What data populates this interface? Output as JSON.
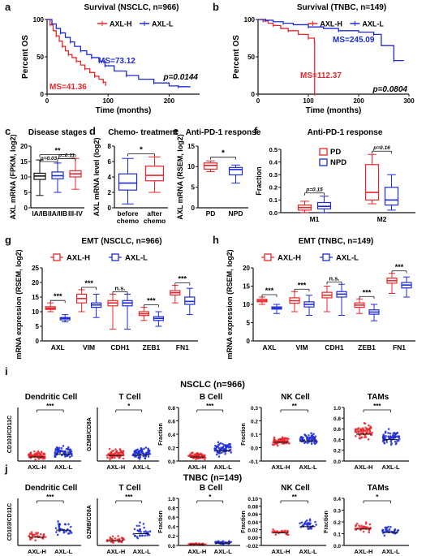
{
  "panel_letters": [
    "a",
    "b",
    "c",
    "d",
    "e",
    "f",
    "g",
    "h",
    "i",
    "j"
  ],
  "colors": {
    "high": "#e8262a",
    "low": "#1d2bd6",
    "axis": "#111111"
  },
  "section_titles": {
    "i": "NSCLC (n=966)",
    "j": "TNBC (n=149)"
  },
  "chart_data": [
    {
      "panel": "a",
      "type": "line",
      "title": "Survival (NSCLC, n=966)",
      "xlabel": "Time (months)",
      "ylabel": "Percent OS",
      "xlim": [
        0,
        250
      ],
      "ylim": [
        0,
        100
      ],
      "xticks": [
        0,
        100,
        200
      ],
      "yticks": [
        0,
        50,
        100
      ],
      "legend": [
        "AXL-H",
        "AXL-L"
      ],
      "annotations": {
        "ms_high": "MS=41.36",
        "ms_low": "MS=73.12",
        "p": "p=0.0144"
      },
      "series": [
        {
          "name": "AXL-H",
          "x": [
            0,
            5,
            10,
            15,
            20,
            25,
            30,
            35,
            41,
            48,
            55,
            62,
            70,
            78,
            85,
            92,
            96
          ],
          "y": [
            100,
            93,
            85,
            78,
            71,
            64,
            58,
            53,
            49,
            44,
            39,
            34,
            29,
            24,
            20,
            16,
            11
          ]
        },
        {
          "name": "AXL-L",
          "x": [
            0,
            8,
            15,
            22,
            30,
            38,
            45,
            55,
            65,
            73,
            85,
            95,
            110,
            130,
            150,
            175,
            200,
            215,
            235
          ],
          "y": [
            100,
            94,
            88,
            82,
            76,
            70,
            64,
            58,
            53,
            49,
            44,
            38,
            31,
            25,
            20,
            15,
            11,
            10,
            10
          ]
        }
      ]
    },
    {
      "panel": "b",
      "type": "line",
      "title": "Survival (TNBC, n=149)",
      "xlabel": "Time (months)",
      "ylabel": "Percent OS",
      "xlim": [
        0,
        300
      ],
      "ylim": [
        0,
        100
      ],
      "xticks": [
        0,
        100,
        200,
        300
      ],
      "yticks": [
        0,
        50,
        100
      ],
      "legend": [
        "AXL-H",
        "AXL-L"
      ],
      "annotations": {
        "ms_high": "MS=112.37",
        "ms_low": "MS=245.09",
        "p": "p=0.0804"
      },
      "series": [
        {
          "name": "AXL-H",
          "x": [
            0,
            10,
            20,
            30,
            45,
            60,
            80,
            100,
            112,
            112.5
          ],
          "y": [
            100,
            98,
            95,
            92,
            88,
            85,
            80,
            75,
            70,
            0
          ]
        },
        {
          "name": "AXL-L",
          "x": [
            0,
            15,
            30,
            50,
            70,
            100,
            130,
            160,
            200,
            230,
            245,
            270,
            290
          ],
          "y": [
            100,
            99,
            97,
            95,
            93,
            90,
            88,
            85,
            83,
            80,
            65,
            45,
            45
          ]
        }
      ]
    },
    {
      "panel": "c",
      "type": "box",
      "title": "Disease stages",
      "ylabel": "AXL mRNA (FPKM, log2)",
      "ylim": [
        0,
        20
      ],
      "yticks": [
        0,
        5,
        10,
        15,
        20
      ],
      "categories": [
        "IA/IB",
        "IIA/IIB",
        "III-IV"
      ],
      "box_colors": [
        "#111111",
        "#1d2bd6",
        "#e8262a"
      ],
      "boxes": [
        {
          "min": 4,
          "q1": 9.2,
          "median": 10.3,
          "q3": 11.2,
          "max": 15.5
        },
        {
          "min": 5,
          "q1": 9.4,
          "median": 10.4,
          "q3": 11.6,
          "max": 14.5
        },
        {
          "min": 6,
          "q1": 10.0,
          "median": 11.0,
          "q3": 12.0,
          "max": 16.0
        }
      ],
      "annotations": {
        "p1": "p=0.03",
        "p2": "p=0.11",
        "sig": "**"
      }
    },
    {
      "panel": "d",
      "type": "box",
      "title": "Chemo- treatment",
      "ylabel": "AXL mRNA level (log2)",
      "ylim": [
        0,
        8
      ],
      "yticks": [
        0,
        2,
        4,
        6,
        8
      ],
      "categories": [
        "before chemo",
        "after chemo"
      ],
      "box_colors": [
        "#1d2bd6",
        "#e8262a"
      ],
      "boxes": [
        {
          "min": 0.5,
          "q1": 2.3,
          "median": 3.2,
          "q3": 4.4,
          "max": 6.4
        },
        {
          "min": 2.0,
          "q1": 3.5,
          "median": 4.2,
          "q3": 5.4,
          "max": 6.6
        }
      ],
      "annotations": {
        "sig": "*"
      }
    },
    {
      "panel": "e",
      "type": "box",
      "title": "Anti-PD-1 response",
      "ylabel": "AXL mRNA (RSEM, log2)",
      "ylim": [
        0,
        15
      ],
      "yticks": [
        0,
        5,
        10,
        15
      ],
      "categories": [
        "PD",
        "NPD"
      ],
      "box_colors": [
        "#e8262a",
        "#1d2bd6"
      ],
      "boxes": [
        {
          "min": 8.8,
          "q1": 9.4,
          "median": 10.3,
          "q3": 10.9,
          "max": 11.4
        },
        {
          "min": 6.0,
          "q1": 8.0,
          "median": 9.3,
          "q3": 9.8,
          "max": 10.4
        }
      ],
      "annotations": {
        "sig": "*"
      }
    },
    {
      "panel": "f",
      "type": "box",
      "title": "Anti-PD-1 response",
      "ylabel": "Fraction",
      "ylim": [
        0,
        0.5
      ],
      "yticks": [
        0.0,
        0.1,
        0.2,
        0.3,
        0.4,
        0.5
      ],
      "categories": [
        "M1",
        "M2"
      ],
      "legend": [
        "PD",
        "NPD"
      ],
      "groups": [
        {
          "name": "PD",
          "color": "#e8262a",
          "boxes": [
            {
              "min": 0.0,
              "q1": 0.02,
              "median": 0.04,
              "q3": 0.06,
              "max": 0.09
            },
            {
              "min": 0.07,
              "q1": 0.1,
              "median": 0.16,
              "q3": 0.38,
              "max": 0.46
            }
          ]
        },
        {
          "name": "NPD",
          "color": "#1d2bd6",
          "boxes": [
            {
              "min": 0.0,
              "q1": 0.03,
              "median": 0.05,
              "q3": 0.08,
              "max": 0.13
            },
            {
              "min": 0.02,
              "q1": 0.06,
              "median": 0.1,
              "q3": 0.2,
              "max": 0.3
            }
          ]
        }
      ],
      "annotations": {
        "p1": "p=0.15",
        "p2": "p=0.16"
      }
    },
    {
      "panel": "g",
      "type": "box",
      "title": "EMT (NSCLC, n=966)",
      "ylabel": "mRNA expression (RSEM, log2)",
      "ylim": [
        0,
        25
      ],
      "yticks": [
        0,
        5,
        10,
        15,
        20,
        25
      ],
      "categories": [
        "AXL",
        "VIM",
        "CDH1",
        "ZEB1",
        "FN1"
      ],
      "legend": [
        "AXL-H",
        "AXL-L"
      ],
      "sig": [
        "***",
        "***",
        "n.s.",
        "***",
        "***"
      ],
      "groups": [
        {
          "name": "AXL-H",
          "color": "#e8262a",
          "boxes": [
            {
              "min": 10,
              "q1": 10.8,
              "median": 11.2,
              "q3": 11.7,
              "max": 13
            },
            {
              "min": 10,
              "q1": 13,
              "median": 14.5,
              "q3": 16,
              "max": 17.5
            },
            {
              "min": 4,
              "q1": 12,
              "median": 13,
              "q3": 13.8,
              "max": 16
            },
            {
              "min": 7,
              "q1": 8.7,
              "median": 9.3,
              "q3": 10,
              "max": 11.5
            },
            {
              "min": 13,
              "q1": 15.7,
              "median": 16.5,
              "q3": 17.2,
              "max": 19
            }
          ]
        },
        {
          "name": "AXL-L",
          "color": "#1d2bd6",
          "boxes": [
            {
              "min": 6.5,
              "q1": 7.2,
              "median": 7.7,
              "q3": 8,
              "max": 9
            },
            {
              "min": 8,
              "q1": 11.5,
              "median": 12.3,
              "q3": 13,
              "max": 16
            },
            {
              "min": 4,
              "q1": 12,
              "median": 13,
              "q3": 13.8,
              "max": 16
            },
            {
              "min": 5,
              "q1": 7,
              "median": 7.7,
              "q3": 8.3,
              "max": 10
            },
            {
              "min": 9,
              "q1": 12.5,
              "median": 13.5,
              "q3": 15,
              "max": 18
            }
          ]
        }
      ]
    },
    {
      "panel": "h",
      "type": "box",
      "title": "EMT (TNBC, n=149)",
      "ylabel": "mRNA expression (RSEM, log2)",
      "ylim": [
        0,
        20
      ],
      "yticks": [
        0,
        5,
        10,
        15,
        20
      ],
      "categories": [
        "AXL",
        "VIM",
        "CDH1",
        "ZEB1",
        "FN1"
      ],
      "legend": [
        "AXL-H",
        "AXL-L"
      ],
      "sig": [
        "***",
        "***",
        "n.s.",
        "***",
        "***"
      ],
      "groups": [
        {
          "name": "AXL-H",
          "color": "#e8262a",
          "boxes": [
            {
              "min": 10,
              "q1": 10.7,
              "median": 11,
              "q3": 11.4,
              "max": 12
            },
            {
              "min": 8,
              "q1": 10.3,
              "median": 11,
              "q3": 11.8,
              "max": 13.5
            },
            {
              "min": 8,
              "q1": 11.8,
              "median": 12.5,
              "q3": 13.3,
              "max": 15
            },
            {
              "min": 7.5,
              "q1": 9.2,
              "median": 9.8,
              "q3": 10.4,
              "max": 11.5
            },
            {
              "min": 13,
              "q1": 15.8,
              "median": 16.5,
              "q3": 17.2,
              "max": 18.5
            }
          ]
        },
        {
          "name": "AXL-L",
          "color": "#1d2bd6",
          "boxes": [
            {
              "min": 7.5,
              "q1": 8.7,
              "median": 9,
              "q3": 9.3,
              "max": 10
            },
            {
              "min": 7,
              "q1": 9.3,
              "median": 10,
              "q3": 10.7,
              "max": 12.5
            },
            {
              "min": 7,
              "q1": 12,
              "median": 12.8,
              "q3": 13.5,
              "max": 15.5
            },
            {
              "min": 5.5,
              "q1": 7.3,
              "median": 7.9,
              "q3": 8.5,
              "max": 10
            },
            {
              "min": 12,
              "q1": 14.5,
              "median": 15.3,
              "q3": 16,
              "max": 17.5
            }
          ]
        }
      ]
    },
    {
      "panel": "i1",
      "type": "scatter",
      "title": "Dendritic Cell",
      "ylabel": "CD103/CD11C",
      "categories": [
        "AXL-H",
        "AXL-L"
      ],
      "sig": "***",
      "ylim": [
        0,
        8
      ],
      "groups": [
        {
          "name": "AXL-H",
          "center": 0.6,
          "spread": 0.9,
          "max": 4
        },
        {
          "name": "AXL-L",
          "center": 1.0,
          "spread": 1.4,
          "max": 7
        }
      ]
    },
    {
      "panel": "i2",
      "type": "scatter",
      "title": "T Cell",
      "ylabel": "GZMB/CD8A",
      "categories": [
        "AXL-H",
        "AXL-L"
      ],
      "sig": "*",
      "ylim": [
        0,
        8
      ],
      "groups": [
        {
          "name": "AXL-H",
          "center": 0.8,
          "spread": 1.0,
          "max": 5
        },
        {
          "name": "AXL-L",
          "center": 0.9,
          "spread": 1.2,
          "max": 6
        }
      ]
    },
    {
      "panel": "i3",
      "type": "scatter",
      "title": "B Cell",
      "ylabel": "Fraction",
      "categories": [
        "AXL-H",
        "AXL-L"
      ],
      "sig": "***",
      "ylim": [
        0,
        0.8
      ],
      "yticks": [
        0.0,
        0.2,
        0.4,
        0.6,
        0.8
      ],
      "groups": [
        {
          "name": "AXL-H",
          "center": 0.06,
          "spread": 0.08,
          "max": 0.3
        },
        {
          "name": "AXL-L",
          "center": 0.15,
          "spread": 0.15,
          "max": 0.6
        }
      ]
    },
    {
      "panel": "i4",
      "type": "scatter",
      "title": "NK Cell",
      "ylabel": "Fraction",
      "categories": [
        "AXL-H",
        "AXL-L"
      ],
      "sig": "**",
      "ylim": [
        -0.1,
        0.3
      ],
      "yticks": [
        -0.1,
        0.0,
        0.1,
        0.2,
        0.3
      ],
      "groups": [
        {
          "name": "AXL-H",
          "center": 0.04,
          "spread": 0.05,
          "max": 0.22
        },
        {
          "name": "AXL-L",
          "center": 0.05,
          "spread": 0.05,
          "max": 0.25
        }
      ]
    },
    {
      "panel": "i5",
      "type": "scatter",
      "title": "TAMs",
      "ylabel": "",
      "categories": [
        "AXL-H",
        "AXL-L"
      ],
      "sig": "***",
      "ylim": [
        0,
        1.0
      ],
      "yticks": [
        0.0,
        0.2,
        0.4,
        0.6,
        0.8,
        1.0
      ],
      "groups": [
        {
          "name": "AXL-H",
          "center": 0.5,
          "spread": 0.2,
          "max": 0.95
        },
        {
          "name": "AXL-L",
          "center": 0.4,
          "spread": 0.2,
          "max": 0.9
        }
      ]
    },
    {
      "panel": "j1",
      "type": "scatter",
      "title": "Dendritic Cell",
      "ylabel": "CD103/CD11C",
      "categories": [
        "AXL-H",
        "AXL-L"
      ],
      "sig": "***",
      "ylim": [
        0,
        4
      ],
      "groups": [
        {
          "name": "AXL-H",
          "center": 0.7,
          "spread": 0.6,
          "max": 2.5
        },
        {
          "name": "AXL-L",
          "center": 1.3,
          "spread": 0.9,
          "max": 3.5
        }
      ]
    },
    {
      "panel": "j2",
      "type": "scatter",
      "title": "T Cell",
      "ylabel": "GZMB/CD8A",
      "categories": [
        "AXL-H",
        "AXL-L"
      ],
      "sig": "***",
      "ylim": [
        0,
        4
      ],
      "groups": [
        {
          "name": "AXL-H",
          "center": 0.4,
          "spread": 0.5,
          "max": 2
        },
        {
          "name": "AXL-L",
          "center": 1.0,
          "spread": 1.0,
          "max": 3.8
        }
      ]
    },
    {
      "panel": "j3",
      "type": "scatter",
      "title": "B Cell",
      "ylabel": "Fraction",
      "categories": [
        "AXL-H",
        "AXL-L"
      ],
      "sig": "*",
      "ylim": [
        0,
        1.0
      ],
      "yticks": [
        0.0,
        0.2,
        0.4,
        0.6,
        0.8,
        1.0
      ],
      "groups": [
        {
          "name": "AXL-H",
          "center": 0.02,
          "spread": 0.03,
          "max": 0.1
        },
        {
          "name": "AXL-L",
          "center": 0.05,
          "spread": 0.05,
          "max": 0.25
        }
      ]
    },
    {
      "panel": "j4",
      "type": "scatter",
      "title": "NK Cell",
      "ylabel": "Fraction",
      "categories": [
        "AXL-H",
        "AXL-L"
      ],
      "sig": "**",
      "ylim": [
        -0.02,
        0.1
      ],
      "yticks": [
        -0.02,
        0.0,
        0.02,
        0.04,
        0.06,
        0.08,
        0.1
      ],
      "groups": [
        {
          "name": "AXL-H",
          "center": 0.012,
          "spread": 0.012,
          "max": 0.05
        },
        {
          "name": "AXL-L",
          "center": 0.028,
          "spread": 0.02,
          "max": 0.08
        }
      ]
    },
    {
      "panel": "j5",
      "type": "scatter",
      "title": "TAMs",
      "ylabel": "Fraction",
      "categories": [
        "AXL-H",
        "AXL-L"
      ],
      "sig": "*",
      "ylim": [
        0,
        0.4
      ],
      "yticks": [
        0.0,
        0.1,
        0.2,
        0.3,
        0.4
      ],
      "groups": [
        {
          "name": "AXL-H",
          "center": 0.14,
          "spread": 0.07,
          "max": 0.33
        },
        {
          "name": "AXL-L",
          "center": 0.11,
          "spread": 0.05,
          "max": 0.25
        }
      ]
    }
  ]
}
